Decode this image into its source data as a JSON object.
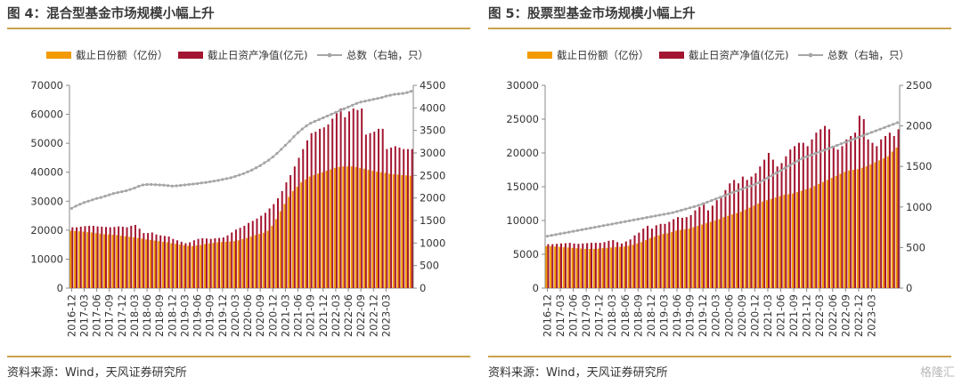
{
  "colors": {
    "accent": "#c9a24a",
    "shares": "#f39a00",
    "nav": "#a31530",
    "count": "#a6a6a6"
  },
  "watermark": "格隆汇",
  "figures": [
    {
      "title": "图 4：混合型基金市场规模小幅上升",
      "source": "资料来源：Wind，天风证券研究所",
      "chart_data": {
        "type": "bar",
        "legend": [
          "截止日份额（亿份）",
          "截止日资产净值(亿元)",
          "总数（右轴，只）"
        ],
        "legend_placement": "top",
        "ylim": [
          0,
          70000
        ],
        "y_ticks": [
          0,
          10000,
          20000,
          30000,
          40000,
          50000,
          60000,
          70000
        ],
        "y2lim": [
          0,
          4500
        ],
        "y2_ticks": [
          0,
          500,
          1000,
          1500,
          2000,
          2500,
          3000,
          3500,
          4000,
          4500
        ],
        "x_tick_labels": [
          "2016-12",
          "2017-03",
          "2017-06",
          "2017-09",
          "2017-12",
          "2018-03",
          "2018-06",
          "2018-09",
          "2018-12",
          "2019-03",
          "2019-06",
          "2019-09",
          "2019-12",
          "2020-03",
          "2020-06",
          "2020-09",
          "2020-12",
          "2021-03",
          "2021-06",
          "2021-09",
          "2021-12",
          "2022-03",
          "2022-06",
          "2022-09",
          "2022-12",
          "2023-03"
        ],
        "x_tick_step": 3,
        "series": [
          {
            "name": "截止日份额（亿份）",
            "axis": "left",
            "values": [
              19800,
              19700,
              19600,
              19500,
              19300,
              19200,
              19000,
              18800,
              18600,
              18500,
              18400,
              18300,
              18100,
              17900,
              17700,
              17500,
              17300,
              17100,
              16800,
              16600,
              16400,
              16200,
              16000,
              15800,
              15500,
              15300,
              15000,
              14800,
              14600,
              14500,
              14700,
              14900,
              15200,
              15400,
              15600,
              15800,
              15900,
              16000,
              16100,
              16200,
              16500,
              16900,
              17300,
              17800,
              18300,
              18700,
              19100,
              19800,
              21500,
              23800,
              26500,
              29000,
              31500,
              33500,
              35000,
              36500,
              37500,
              38500,
              39000,
              39500,
              40000,
              40500,
              41000,
              41500,
              41800,
              42000,
              42000,
              42000,
              41800,
              41500,
              41200,
              40800,
              40500,
              40200,
              40000,
              39800,
              39500,
              39300,
              39200,
              39000,
              38900,
              38800
            ]
          },
          {
            "name": "截止日资产净值(亿元)",
            "axis": "left",
            "values": [
              21000,
              21000,
              21200,
              21400,
              21500,
              21500,
              21300,
              21200,
              21100,
              21000,
              21100,
              21300,
              21200,
              21000,
              21500,
              21800,
              20500,
              19000,
              19000,
              19200,
              18500,
              18200,
              18000,
              17800,
              17000,
              16500,
              16000,
              15500,
              15800,
              16500,
              17000,
              17200,
              17100,
              17000,
              17200,
              17300,
              17500,
              18200,
              19200,
              20200,
              20800,
              21500,
              22500,
              23200,
              24000,
              25000,
              26000,
              27500,
              29000,
              31000,
              33500,
              36500,
              39000,
              42000,
              45000,
              48000,
              51000,
              53500,
              54000,
              55000,
              55500,
              56500,
              58500,
              60500,
              62000,
              59000,
              61000,
              62000,
              61500,
              62000,
              53000,
              53500,
              54000,
              55000,
              55000,
              48000,
              48500,
              49000,
              48500,
              48000,
              48000,
              48000
            ]
          },
          {
            "name": "总数（右轴，只）",
            "axis": "right",
            "values": [
              1770,
              1820,
              1860,
              1900,
              1930,
              1960,
              1990,
              2010,
              2040,
              2070,
              2100,
              2120,
              2140,
              2160,
              2190,
              2220,
              2260,
              2290,
              2300,
              2300,
              2295,
              2290,
              2285,
              2275,
              2265,
              2270,
              2280,
              2290,
              2300,
              2310,
              2320,
              2335,
              2345,
              2360,
              2375,
              2390,
              2410,
              2430,
              2450,
              2480,
              2510,
              2540,
              2580,
              2620,
              2670,
              2720,
              2780,
              2840,
              2910,
              2990,
              3080,
              3170,
              3260,
              3360,
              3450,
              3530,
              3600,
              3660,
              3700,
              3740,
              3780,
              3820,
              3860,
              3900,
              3940,
              3980,
              4020,
              4060,
              4100,
              4130,
              4150,
              4170,
              4190,
              4210,
              4230,
              4260,
              4280,
              4300,
              4310,
              4320,
              4340,
              4370
            ]
          }
        ]
      }
    },
    {
      "title": "图 5：股票型基金市场规模小幅上升",
      "source": "资料来源：Wind，天风证券研究所",
      "chart_data": {
        "type": "bar",
        "legend": [
          "截止日份额（亿份）",
          "截止日资产净值(亿元)",
          "总数（右轴，只）"
        ],
        "legend_placement": "top",
        "ylim": [
          0,
          30000
        ],
        "y_ticks": [
          0,
          5000,
          10000,
          15000,
          20000,
          25000,
          30000
        ],
        "y2lim": [
          0,
          2500
        ],
        "y2_ticks": [
          0,
          500,
          1000,
          1500,
          2000,
          2500
        ],
        "x_tick_labels": [
          "2016-12",
          "2017-03",
          "2017-06",
          "2017-09",
          "2017-12",
          "2018-03",
          "2018-06",
          "2018-09",
          "2018-12",
          "2019-03",
          "2019-06",
          "2019-09",
          "2019-12",
          "2020-03",
          "2020-06",
          "2020-09",
          "2020-12",
          "2021-03",
          "2021-06",
          "2021-09",
          "2021-12",
          "2022-03",
          "2022-06",
          "2022-09",
          "2022-12",
          "2023-03"
        ],
        "x_tick_step": 3,
        "series": [
          {
            "name": "截止日份额（亿份）",
            "axis": "left",
            "values": [
              6200,
              6200,
              6150,
              6100,
              6050,
              6000,
              5950,
              5900,
              5850,
              5800,
              5800,
              5800,
              5850,
              5900,
              5950,
              6000,
              6050,
              6100,
              6150,
              6250,
              6400,
              6600,
              6800,
              7100,
              7400,
              7600,
              7800,
              8000,
              8100,
              8300,
              8500,
              8600,
              8700,
              8800,
              9000,
              9200,
              9400,
              9600,
              9800,
              10000,
              10200,
              10500,
              10700,
              10900,
              11100,
              11300,
              11600,
              11900,
              12200,
              12500,
              12800,
              13000,
              13200,
              13400,
              13600,
              13800,
              13900,
              14000,
              14200,
              14400,
              14600,
              14800,
              15100,
              15400,
              15700,
              16000,
              16300,
              16600,
              16900,
              17200,
              17400,
              17500,
              17600,
              17800,
              18000,
              18300,
              18600,
              18900,
              19200,
              19500,
              20200,
              20800
            ]
          },
          {
            "name": "截止日资产净值(亿元)",
            "axis": "left",
            "values": [
              6500,
              6500,
              6550,
              6600,
              6650,
              6700,
              6600,
              6550,
              6600,
              6650,
              6700,
              6700,
              6700,
              6800,
              7000,
              7100,
              6800,
              6600,
              6900,
              7200,
              7800,
              8200,
              8800,
              9200,
              8800,
              9300,
              9500,
              9500,
              9800,
              10200,
              10500,
              10400,
              10500,
              10800,
              11500,
              12000,
              12500,
              11500,
              12200,
              13000,
              13500,
              14500,
              15500,
              16000,
              15500,
              16500,
              16000,
              16500,
              17000,
              18000,
              19000,
              20000,
              19000,
              18000,
              18500,
              19500,
              20500,
              21000,
              21500,
              21500,
              21000,
              22000,
              23000,
              23500,
              24000,
              23500,
              21000,
              20500,
              21000,
              22000,
              22500,
              23000,
              25500,
              25000,
              22000,
              21500,
              21000,
              22000,
              22500,
              23000,
              22500,
              23500
            ]
          },
          {
            "name": "总数（右轴，只）",
            "axis": "right",
            "values": [
              640,
              650,
              660,
              670,
              680,
              690,
              700,
              710,
              720,
              730,
              740,
              750,
              760,
              770,
              780,
              790,
              800,
              810,
              820,
              830,
              840,
              850,
              860,
              870,
              880,
              890,
              900,
              910,
              920,
              930,
              945,
              960,
              975,
              990,
              1005,
              1020,
              1040,
              1060,
              1080,
              1100,
              1120,
              1140,
              1160,
              1180,
              1200,
              1220,
              1240,
              1260,
              1280,
              1300,
              1330,
              1360,
              1390,
              1420,
              1450,
              1480,
              1510,
              1540,
              1570,
              1600,
              1620,
              1640,
              1660,
              1680,
              1700,
              1720,
              1740,
              1760,
              1780,
              1800,
              1820,
              1840,
              1860,
              1880,
              1900,
              1920,
              1940,
              1960,
              1980,
              2000,
              2020,
              2040
            ]
          }
        ]
      }
    }
  ]
}
